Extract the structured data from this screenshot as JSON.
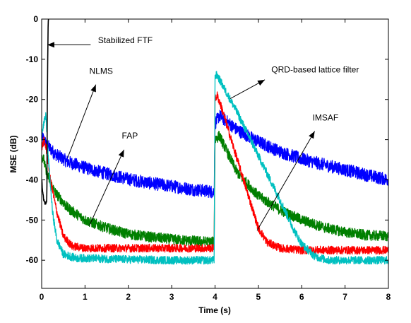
{
  "chart_data": {
    "type": "line",
    "title": "",
    "xlabel": "Time (s)",
    "ylabel": "MSE (dB)",
    "xlim": [
      0,
      8
    ],
    "ylim": [
      -67,
      0
    ],
    "xticks": [
      0,
      1,
      2,
      3,
      4,
      5,
      6,
      7,
      8
    ],
    "yticks": [
      0,
      -10,
      -20,
      -30,
      -40,
      -50,
      -60
    ],
    "grid": false,
    "legend": "none",
    "change_time": 4,
    "series": [
      {
        "key": "nlms",
        "color": "#0000ff",
        "noise": 1.6,
        "x": [
          0,
          0.05,
          0.1,
          0.3,
          0.6,
          1.0,
          1.5,
          2.0,
          2.5,
          3.0,
          3.5,
          3.98,
          4.0,
          4.1,
          4.5,
          5.0,
          5.5,
          6.0,
          6.5,
          7.0,
          7.5,
          8.0
        ],
        "y": [
          -29,
          -30,
          -31,
          -33.5,
          -35.5,
          -37,
          -38.5,
          -39.8,
          -40.8,
          -41.6,
          -42.4,
          -43,
          -26,
          -24,
          -27.5,
          -30.5,
          -33,
          -34.8,
          -36.2,
          -37.5,
          -38.8,
          -40
        ]
      },
      {
        "key": "fap",
        "color": "#007f00",
        "noise": 1.3,
        "x": [
          0,
          0.05,
          0.1,
          0.3,
          0.6,
          1.0,
          1.5,
          2.0,
          2.5,
          3.0,
          3.5,
          3.98,
          4.0,
          4.1,
          4.5,
          5.0,
          5.5,
          6.0,
          6.5,
          7.0,
          7.5,
          8.0
        ],
        "y": [
          -34,
          -35,
          -38,
          -43,
          -47,
          -50,
          -52,
          -53.5,
          -54.2,
          -54.8,
          -55.2,
          -55.5,
          -30,
          -29,
          -38,
          -44,
          -47.5,
          -50,
          -51.8,
          -53,
          -53.8,
          -54
        ]
      },
      {
        "key": "imsaf",
        "color": "#ff0000",
        "noise": 1.0,
        "x": [
          0,
          0.06,
          0.12,
          0.2,
          0.35,
          0.5,
          0.7,
          1.0,
          2.0,
          3.0,
          3.98,
          4.0,
          4.05,
          4.15,
          4.4,
          4.6,
          4.8,
          5.0,
          5.2,
          5.5,
          6.0,
          7.0,
          8.0
        ],
        "y": [
          -32,
          -30,
          -33,
          -40,
          -48,
          -54,
          -56.5,
          -57,
          -57,
          -57,
          -57,
          -20,
          -19,
          -22,
          -31,
          -38,
          -45,
          -52,
          -55.5,
          -57,
          -57.5,
          -57.5,
          -57.5
        ]
      },
      {
        "key": "qrd",
        "color": "#00c0c0",
        "noise": 1.0,
        "x": [
          0,
          0.05,
          0.1,
          0.15,
          0.25,
          0.35,
          0.5,
          0.8,
          1.0,
          2.0,
          3.0,
          3.98,
          4.0,
          4.05,
          4.2,
          4.5,
          5.0,
          5.5,
          5.8,
          6.0,
          6.3,
          6.6,
          7.0,
          8.0
        ],
        "y": [
          -28,
          -26,
          -24,
          -34,
          -48,
          -55,
          -58.5,
          -59.5,
          -59.5,
          -59.8,
          -60,
          -60,
          -14,
          -14,
          -17,
          -23,
          -34,
          -45,
          -52,
          -56,
          -59,
          -60,
          -60,
          -60
        ]
      },
      {
        "key": "ftf",
        "color": "#000000",
        "noise": 0.6,
        "x": [
          0,
          0.03,
          0.08,
          0.12,
          0.13,
          0.15,
          0.16
        ],
        "y": [
          -40,
          -44,
          -46,
          -45,
          -20,
          0,
          0
        ]
      }
    ],
    "annotations": [
      {
        "key": "ftf",
        "text": "Stabilized FTF",
        "text_at": [
          1.3,
          -6
        ],
        "arrow_from": [
          1.13,
          -6.4
        ],
        "arrow_to": [
          0.13,
          -6.4
        ]
      },
      {
        "key": "nlms",
        "text": "NLMS",
        "text_at": [
          1.1,
          -13.6
        ],
        "arrow_from": [
          0.6,
          -34.5
        ],
        "arrow_to": [
          1.25,
          -16.3
        ]
      },
      {
        "key": "fap",
        "text": "FAP",
        "text_at": [
          1.85,
          -29.7
        ],
        "arrow_from": [
          1.1,
          -51.4
        ],
        "arrow_to": [
          1.9,
          -32.5
        ]
      },
      {
        "key": "qrd",
        "text": "QRD-based lattice filter",
        "text_at": [
          5.3,
          -13.3
        ],
        "arrow_from": [
          4.35,
          -19.8
        ],
        "arrow_to": [
          5.15,
          -15.1
        ]
      },
      {
        "key": "imsaf",
        "text": "IMSAF",
        "text_at": [
          6.25,
          -25.2
        ],
        "arrow_from": [
          4.97,
          -52.6
        ],
        "arrow_to": [
          6.3,
          -27.9
        ]
      }
    ]
  }
}
